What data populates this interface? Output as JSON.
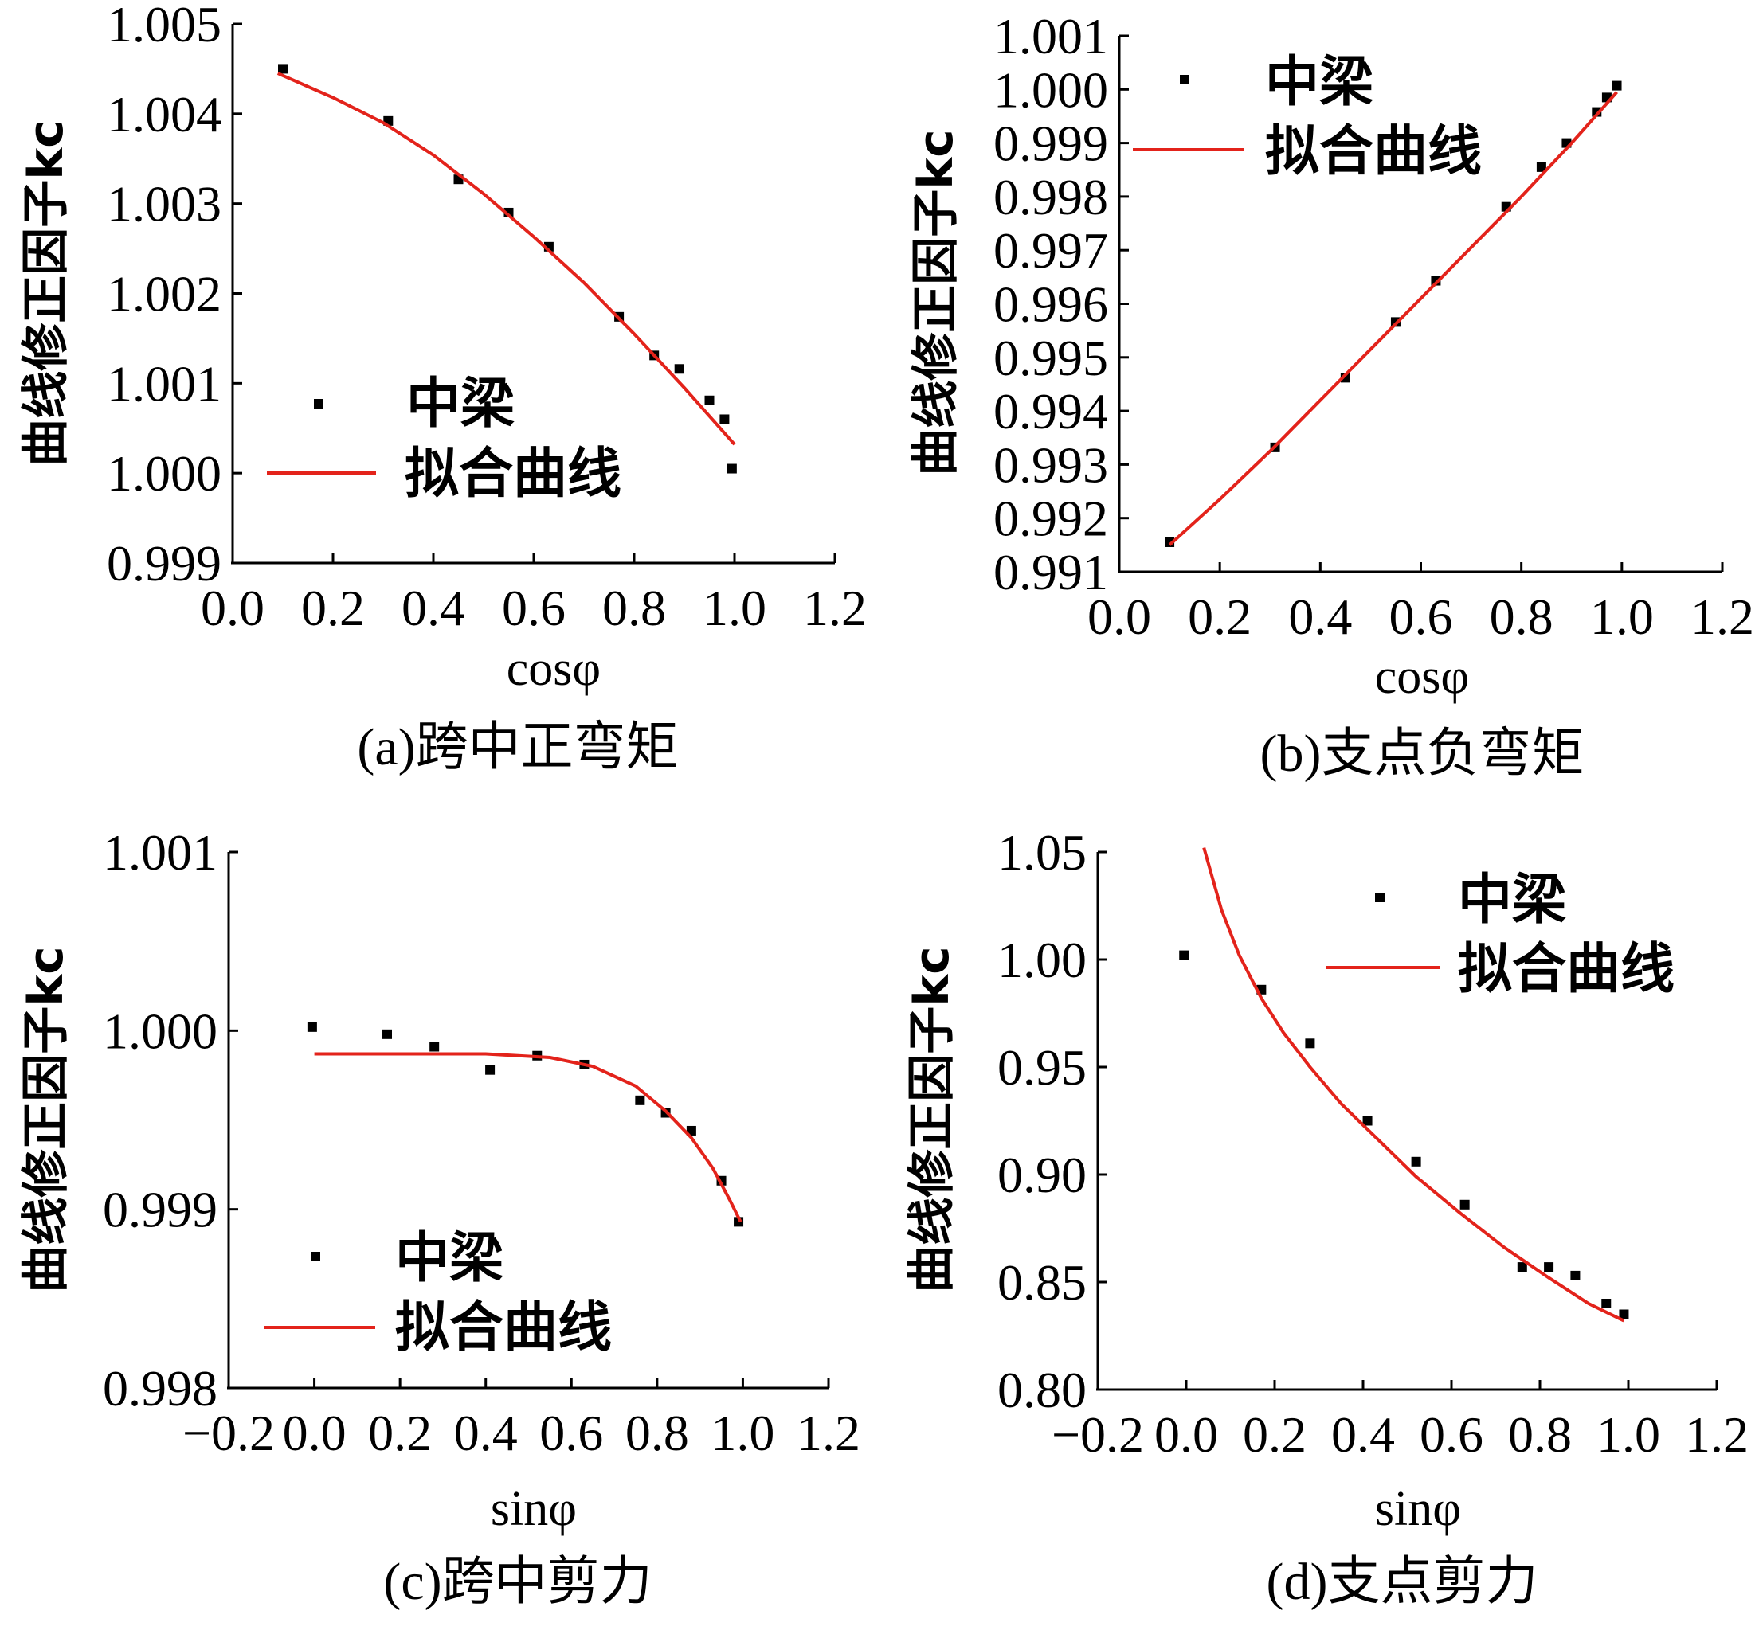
{
  "colors": {
    "fit_line": "#e3231b",
    "points": "#000000",
    "axis": "#000000"
  },
  "chart_data": [
    {
      "panel": "a",
      "type": "scatter",
      "caption": "(a)跨中正弯矩",
      "xlabel": "cosφ",
      "ylabel": "曲线修正因子kc",
      "xlim": [
        0.0,
        1.2
      ],
      "ylim": [
        0.999,
        1.005
      ],
      "xticks": [
        "0.0",
        "0.2",
        "0.4",
        "0.6",
        "0.8",
        "1.0",
        "1.2"
      ],
      "yticks": [
        "0.999",
        "1.000",
        "1.001",
        "1.002",
        "1.003",
        "1.004",
        "1.005"
      ],
      "legend_position": "center-left",
      "series": [
        {
          "name": "中梁",
          "kind": "points",
          "x": [
            0.1,
            0.31,
            0.45,
            0.55,
            0.63,
            0.77,
            0.84,
            0.89,
            0.95,
            0.98,
            0.995
          ],
          "y": [
            1.0045,
            1.00392,
            1.00327,
            1.0029,
            1.00252,
            1.00174,
            1.00131,
            1.00116,
            1.00081,
            1.0006,
            1.00005
          ]
        },
        {
          "name": "拟合曲线",
          "kind": "line",
          "x": [
            0.09,
            0.2,
            0.3,
            0.4,
            0.5,
            0.6,
            0.7,
            0.8,
            0.9,
            1.0
          ],
          "y": [
            1.00445,
            1.00418,
            1.0039,
            1.00354,
            1.00311,
            1.00263,
            1.00212,
            1.00155,
            1.00095,
            1.00032
          ]
        }
      ]
    },
    {
      "panel": "b",
      "type": "scatter",
      "caption": "(b)支点负弯矩",
      "xlabel": "cosφ",
      "ylabel": "曲线修正因子kc",
      "xlim": [
        0.0,
        1.2
      ],
      "ylim": [
        0.991,
        1.001
      ],
      "xticks": [
        "0.0",
        "0.2",
        "0.4",
        "0.6",
        "0.8",
        "1.0",
        "1.2"
      ],
      "yticks": [
        "0.991",
        "0.992",
        "0.993",
        "0.994",
        "0.995",
        "0.996",
        "0.997",
        "0.998",
        "0.999",
        "1.000",
        "1.001"
      ],
      "legend_position": "top-left",
      "series": [
        {
          "name": "中梁",
          "kind": "points",
          "x": [
            0.1,
            0.31,
            0.45,
            0.55,
            0.63,
            0.77,
            0.84,
            0.89,
            0.95,
            0.97,
            0.99
          ],
          "y": [
            0.99155,
            0.99332,
            0.99462,
            0.99566,
            0.99643,
            0.99781,
            0.99855,
            0.999,
            0.99958,
            0.99985,
            1.00007
          ]
        },
        {
          "name": "拟合曲线",
          "kind": "line",
          "x": [
            0.1,
            0.2,
            0.3,
            0.4,
            0.5,
            0.6,
            0.7,
            0.8,
            0.9,
            0.99
          ],
          "y": [
            0.9915,
            0.99235,
            0.99325,
            0.9942,
            0.99515,
            0.9961,
            0.99705,
            0.998,
            0.999,
            0.99995
          ]
        }
      ]
    },
    {
      "panel": "c",
      "type": "scatter",
      "caption": "(c)跨中剪力",
      "xlabel": "sinφ",
      "ylabel": "曲线修正因子kc",
      "xlim": [
        -0.2,
        1.2
      ],
      "ylim": [
        0.998,
        1.001
      ],
      "xticks": [
        "−0.2",
        "0.0",
        "0.2",
        "0.4",
        "0.6",
        "0.8",
        "1.0",
        "1.2"
      ],
      "yticks": [
        "0.998",
        "0.999",
        "1.000",
        "1.001"
      ],
      "legend_position": "bottom-left",
      "series": [
        {
          "name": "中梁",
          "kind": "points",
          "x": [
            -0.005,
            0.17,
            0.28,
            0.41,
            0.52,
            0.63,
            0.76,
            0.82,
            0.88,
            0.95,
            0.99
          ],
          "y": [
            1.00002,
            0.99998,
            0.99991,
            0.99978,
            0.99986,
            0.99981,
            0.99961,
            0.99954,
            0.99944,
            0.99916,
            0.99893
          ]
        },
        {
          "name": "拟合曲线",
          "kind": "line",
          "x": [
            0.0,
            0.2,
            0.4,
            0.55,
            0.65,
            0.75,
            0.82,
            0.88,
            0.93,
            0.97,
            0.995
          ],
          "y": [
            0.99987,
            0.99987,
            0.99987,
            0.99985,
            0.9998,
            0.99969,
            0.99955,
            0.9994,
            0.99923,
            0.99905,
            0.99893
          ]
        }
      ]
    },
    {
      "panel": "d",
      "type": "scatter",
      "caption": "(d)支点剪力",
      "xlabel": "sinφ",
      "ylabel": "曲线修正因子kc",
      "xlim": [
        -0.2,
        1.2
      ],
      "ylim": [
        0.8,
        1.05
      ],
      "xticks": [
        "−0.2",
        "0.0",
        "0.2",
        "0.4",
        "0.6",
        "0.8",
        "1.0",
        "1.2"
      ],
      "yticks": [
        "0.80",
        "0.85",
        "0.90",
        "0.95",
        "1.00",
        "1.05"
      ],
      "legend_position": "top-right",
      "series": [
        {
          "name": "中梁",
          "kind": "points",
          "x": [
            -0.005,
            0.17,
            0.28,
            0.41,
            0.52,
            0.63,
            0.76,
            0.82,
            0.88,
            0.95,
            0.99
          ],
          "y": [
            1.002,
            0.986,
            0.961,
            0.925,
            0.906,
            0.886,
            0.857,
            0.857,
            0.853,
            0.84,
            0.835
          ]
        },
        {
          "name": "拟合曲线",
          "kind": "line",
          "x": [
            0.04,
            0.08,
            0.12,
            0.17,
            0.22,
            0.28,
            0.35,
            0.43,
            0.52,
            0.62,
            0.72,
            0.82,
            0.91,
            0.99
          ],
          "y": [
            1.052,
            1.023,
            1.002,
            0.982,
            0.966,
            0.95,
            0.933,
            0.917,
            0.899,
            0.882,
            0.866,
            0.852,
            0.84,
            0.832
          ]
        }
      ]
    }
  ]
}
